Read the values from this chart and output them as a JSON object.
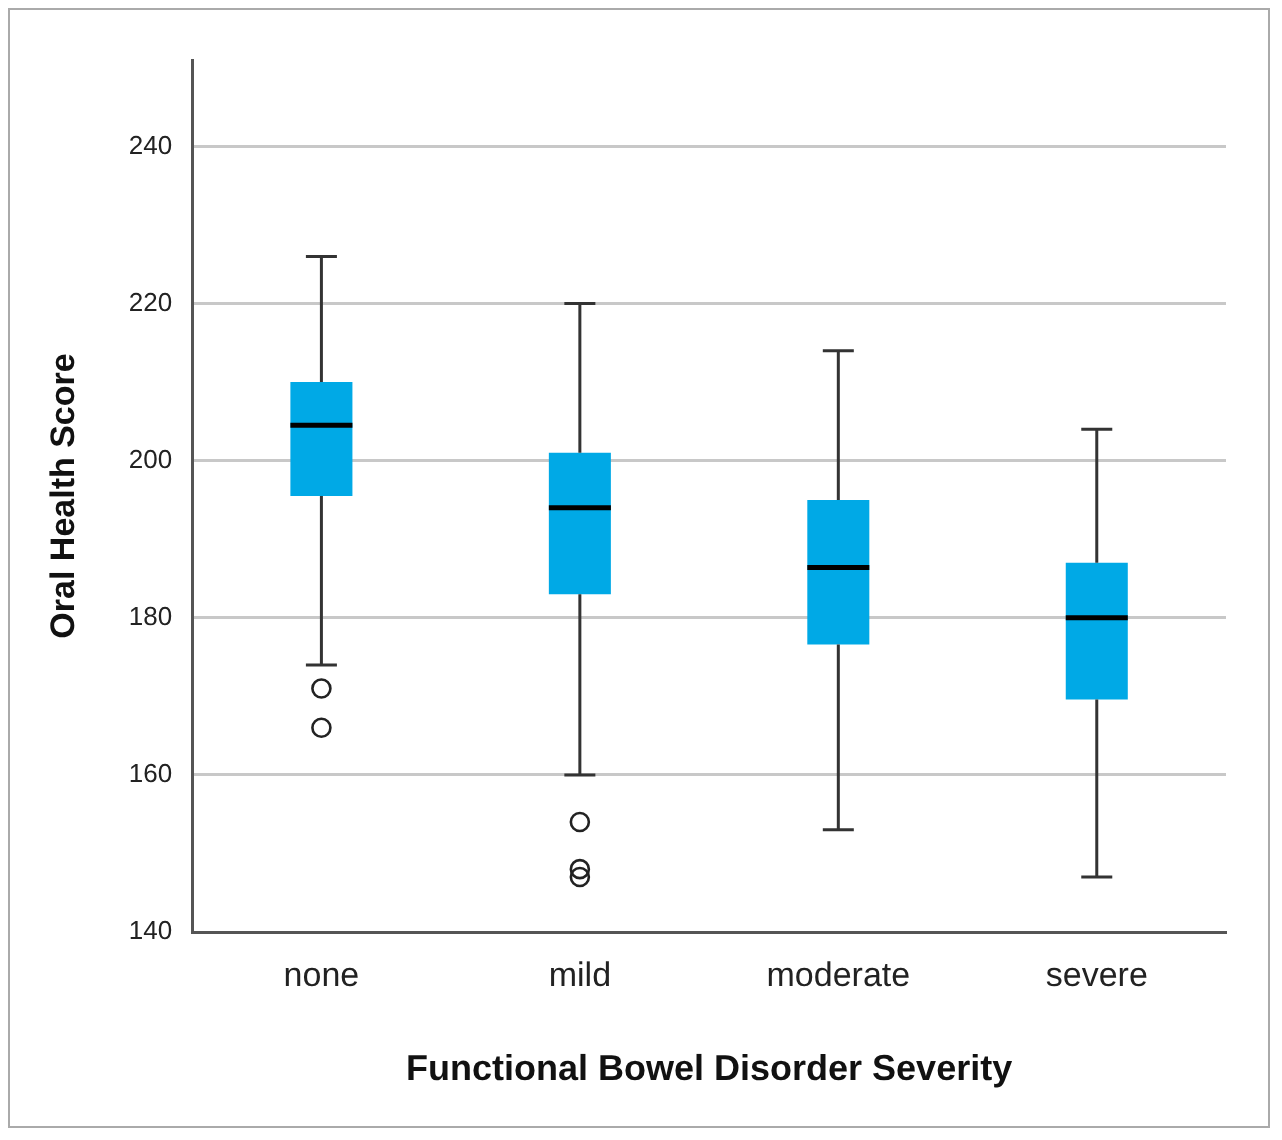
{
  "chart_data": {
    "type": "box",
    "xlabel": "Functional Bowel Disorder Severity",
    "ylabel": "Oral Health Score",
    "categories": [
      "none",
      "mild",
      "moderate",
      "severe"
    ],
    "color": "#00a9e6",
    "boxes": [
      {
        "low": 174,
        "q1": 195.5,
        "median": 204.5,
        "q3": 210,
        "high": 226,
        "outliers": [
          171,
          166
        ]
      },
      {
        "low": 160,
        "q1": 183,
        "median": 194,
        "q3": 201,
        "high": 220,
        "outliers": [
          154,
          148,
          147
        ]
      },
      {
        "low": 153,
        "q1": 176.6,
        "median": 186.4,
        "q3": 195,
        "high": 214
      },
      {
        "low": 147,
        "q1": 169.6,
        "median": 180,
        "q3": 187,
        "high": 204
      }
    ],
    "ylim": [
      140,
      251
    ],
    "yticks": [
      140,
      160,
      180,
      200,
      220,
      240
    ],
    "grid": "y",
    "legend": false
  }
}
